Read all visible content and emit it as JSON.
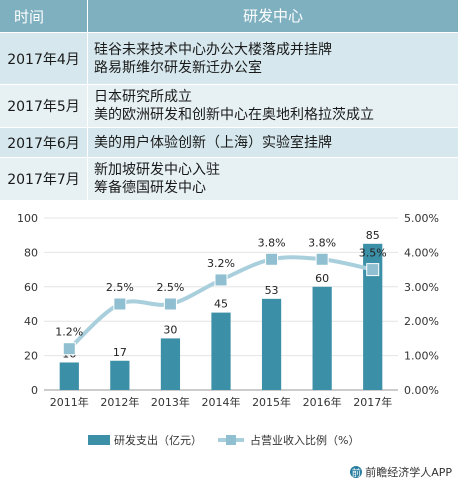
{
  "table": {
    "headers": [
      "时间",
      "研发中心"
    ],
    "rows": [
      {
        "time": "2017年4月",
        "lines": [
          "硅谷未来技术中心办公大楼落成并挂牌",
          "路易斯维尔研发新迁办公室"
        ]
      },
      {
        "time": "2017年5月",
        "lines": [
          "日本研究所成立",
          "美的欧洲研发和创新中心在奥地利格拉茨成立"
        ]
      },
      {
        "time": "2017年6月",
        "lines": [
          "美的用户体验创新（上海）实验室挂牌"
        ]
      },
      {
        "time": "2017年7月",
        "lines": [
          "新加坡研发中心入驻",
          "筹备德国研发中心"
        ]
      }
    ]
  },
  "chart_data": {
    "type": "bar",
    "categories": [
      "2011年",
      "2012年",
      "2013年",
      "2014年",
      "2015年",
      "2016年",
      "2017年"
    ],
    "series": [
      {
        "name": "研发支出（亿元）",
        "type": "bar",
        "axis": "left",
        "values": [
          16,
          17,
          30,
          45,
          53,
          60,
          85
        ],
        "labels": [
          "16",
          "17",
          "30",
          "45",
          "53",
          "60",
          "85"
        ]
      },
      {
        "name": "占营业收入比例（%）",
        "type": "line",
        "axis": "right",
        "values": [
          1.2,
          2.5,
          2.5,
          3.2,
          3.8,
          3.8,
          3.5
        ],
        "labels": [
          "1.2%",
          "2.5%",
          "2.5%",
          "3.2%",
          "3.8%",
          "3.8%",
          "3.5%"
        ]
      }
    ],
    "ylim_left": [
      0,
      100
    ],
    "yticks_left": [
      "0",
      "20",
      "40",
      "60",
      "80",
      "100"
    ],
    "ylim_right": [
      0,
      5
    ],
    "yticks_right": [
      "0.00%",
      "1.00%",
      "2.00%",
      "3.00%",
      "4.00%",
      "5.00%"
    ],
    "legend_position": "bottom",
    "colors": {
      "bar": "#3b8fa6",
      "line": "#a9cfdd",
      "marker": "#8fbfd0"
    }
  },
  "footer": {
    "source": "前瞻经济学人APP",
    "logo_glyph": "前"
  }
}
